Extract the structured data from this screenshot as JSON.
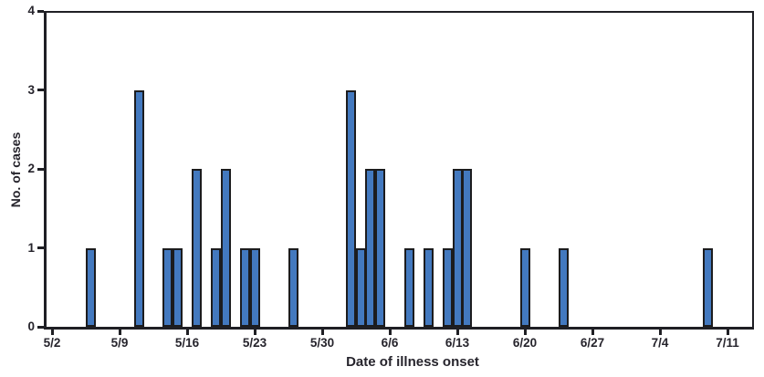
{
  "chart_data": {
    "type": "bar",
    "title": "",
    "xlabel": "Date of illness onset",
    "ylabel": "No. of cases",
    "ylim": [
      0,
      4
    ],
    "y_ticks": [
      0,
      1,
      2,
      3,
      4
    ],
    "grid": false,
    "legend": null,
    "x_axis_unit": "day",
    "x_ticks": [
      {
        "label": "5/2",
        "day": 0
      },
      {
        "label": "5/9",
        "day": 7
      },
      {
        "label": "5/16",
        "day": 14
      },
      {
        "label": "5/23",
        "day": 21
      },
      {
        "label": "5/30",
        "day": 28
      },
      {
        "label": "6/6",
        "day": 35
      },
      {
        "label": "6/13",
        "day": 42
      },
      {
        "label": "6/20",
        "day": 49
      },
      {
        "label": "6/27",
        "day": 56
      },
      {
        "label": "7/4",
        "day": 63
      },
      {
        "label": "7/11",
        "day": 70
      }
    ],
    "bars": [
      {
        "date": "5/6",
        "day": 4,
        "cases": 1
      },
      {
        "date": "5/11",
        "day": 9,
        "cases": 3
      },
      {
        "date": "5/14",
        "day": 12,
        "cases": 1
      },
      {
        "date": "5/15",
        "day": 13,
        "cases": 1
      },
      {
        "date": "5/17",
        "day": 15,
        "cases": 2
      },
      {
        "date": "5/19",
        "day": 17,
        "cases": 1
      },
      {
        "date": "5/20",
        "day": 18,
        "cases": 2
      },
      {
        "date": "5/22",
        "day": 20,
        "cases": 1
      },
      {
        "date": "5/23",
        "day": 21,
        "cases": 1
      },
      {
        "date": "5/27",
        "day": 25,
        "cases": 1
      },
      {
        "date": "6/2",
        "day": 31,
        "cases": 3
      },
      {
        "date": "6/3",
        "day": 32,
        "cases": 1
      },
      {
        "date": "6/4",
        "day": 33,
        "cases": 2
      },
      {
        "date": "6/5",
        "day": 34,
        "cases": 2
      },
      {
        "date": "6/8",
        "day": 37,
        "cases": 1
      },
      {
        "date": "6/10",
        "day": 39,
        "cases": 1
      },
      {
        "date": "6/12",
        "day": 41,
        "cases": 1
      },
      {
        "date": "6/13",
        "day": 42,
        "cases": 2
      },
      {
        "date": "6/14",
        "day": 43,
        "cases": 2
      },
      {
        "date": "6/20",
        "day": 49,
        "cases": 1
      },
      {
        "date": "6/24",
        "day": 53,
        "cases": 1
      },
      {
        "date": "7/9",
        "day": 68,
        "cases": 1
      }
    ],
    "colors": {
      "bar_fill": "#4379bf",
      "bar_border": "#1c1c1e",
      "axis": "#1f1f24",
      "text": "#26242c"
    }
  }
}
